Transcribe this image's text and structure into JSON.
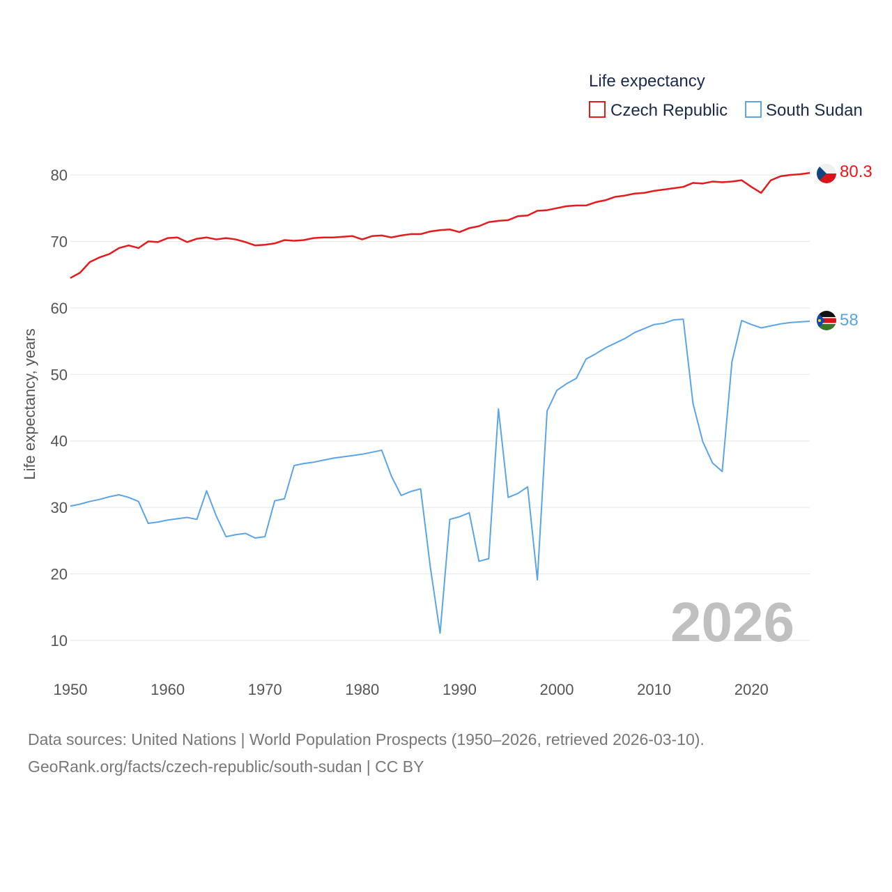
{
  "legend": {
    "title": "Life expectancy",
    "items": [
      "Czech Republic",
      "South Sudan"
    ]
  },
  "watermark_year": "2026",
  "end_labels": [
    "80.3",
    "58"
  ],
  "source": {
    "line1": "Data sources: United Nations | World Population Prospects (1950–2026, retrieved 2026-03-10).",
    "line2": "GeoRank.org/facts/czech-republic/south-sudan | CC BY"
  },
  "chart_data": {
    "type": "line",
    "title": "Life expectancy",
    "xlabel": "",
    "ylabel": "Life expectancy, years",
    "xlim": [
      1950,
      2026
    ],
    "ylim": [
      5,
      85
    ],
    "xticks": [
      1950,
      1960,
      1970,
      1980,
      1990,
      2000,
      2010,
      2020
    ],
    "yticks": [
      10,
      20,
      30,
      40,
      50,
      60,
      70,
      80
    ],
    "grid": true,
    "legend_position": "top-right",
    "x": [
      1950,
      1951,
      1952,
      1953,
      1954,
      1955,
      1956,
      1957,
      1958,
      1959,
      1960,
      1961,
      1962,
      1963,
      1964,
      1965,
      1966,
      1967,
      1968,
      1969,
      1970,
      1971,
      1972,
      1973,
      1974,
      1975,
      1976,
      1977,
      1978,
      1979,
      1980,
      1981,
      1982,
      1983,
      1984,
      1985,
      1986,
      1987,
      1988,
      1989,
      1990,
      1991,
      1992,
      1993,
      1994,
      1995,
      1996,
      1997,
      1998,
      1999,
      2000,
      2001,
      2002,
      2003,
      2004,
      2005,
      2006,
      2007,
      2008,
      2009,
      2010,
      2011,
      2012,
      2013,
      2014,
      2015,
      2016,
      2017,
      2018,
      2019,
      2020,
      2021,
      2022,
      2023,
      2024,
      2025,
      2026
    ],
    "series": [
      {
        "name": "Czech Republic",
        "color": "#e41a1c",
        "flag": "czech-republic-flag-icon",
        "values": [
          64.5,
          65.3,
          66.9,
          67.6,
          68.1,
          69.0,
          69.4,
          69.0,
          70.0,
          69.9,
          70.5,
          70.6,
          69.9,
          70.4,
          70.6,
          70.3,
          70.5,
          70.3,
          69.9,
          69.4,
          69.5,
          69.7,
          70.2,
          70.1,
          70.2,
          70.5,
          70.6,
          70.6,
          70.7,
          70.8,
          70.3,
          70.8,
          70.9,
          70.6,
          70.9,
          71.1,
          71.1,
          71.5,
          71.7,
          71.8,
          71.4,
          72.0,
          72.3,
          72.9,
          73.1,
          73.2,
          73.8,
          73.9,
          74.6,
          74.7,
          75.0,
          75.3,
          75.4,
          75.4,
          75.9,
          76.2,
          76.7,
          76.9,
          77.2,
          77.3,
          77.6,
          77.8,
          78.0,
          78.2,
          78.8,
          78.7,
          79.0,
          78.9,
          79.0,
          79.2,
          78.2,
          77.3,
          79.2,
          79.8,
          80.0,
          80.1,
          80.3
        ]
      },
      {
        "name": "South Sudan",
        "color": "#5ba4e5",
        "flag": "south-sudan-flag-icon",
        "values": [
          30.2,
          30.5,
          30.9,
          31.2,
          31.6,
          31.9,
          31.5,
          30.9,
          27.6,
          27.8,
          28.1,
          28.3,
          28.5,
          28.2,
          32.5,
          28.7,
          25.6,
          25.9,
          26.1,
          25.4,
          25.6,
          31.0,
          31.3,
          36.3,
          36.6,
          36.8,
          37.1,
          37.4,
          37.6,
          37.8,
          38.0,
          38.3,
          38.6,
          34.7,
          31.8,
          32.4,
          32.8,
          21.0,
          11.1,
          28.2,
          28.6,
          29.2,
          21.9,
          22.3,
          44.8,
          31.5,
          32.1,
          33.1,
          19.1,
          44.5,
          47.6,
          48.6,
          49.4,
          52.3,
          53.1,
          54.0,
          54.7,
          55.4,
          56.3,
          56.9,
          57.5,
          57.7,
          58.2,
          58.3,
          45.6,
          39.9,
          36.7,
          35.4,
          51.9,
          58.1,
          57.5,
          57.0,
          57.3,
          57.6,
          57.8,
          57.9,
          58.0
        ]
      }
    ]
  }
}
